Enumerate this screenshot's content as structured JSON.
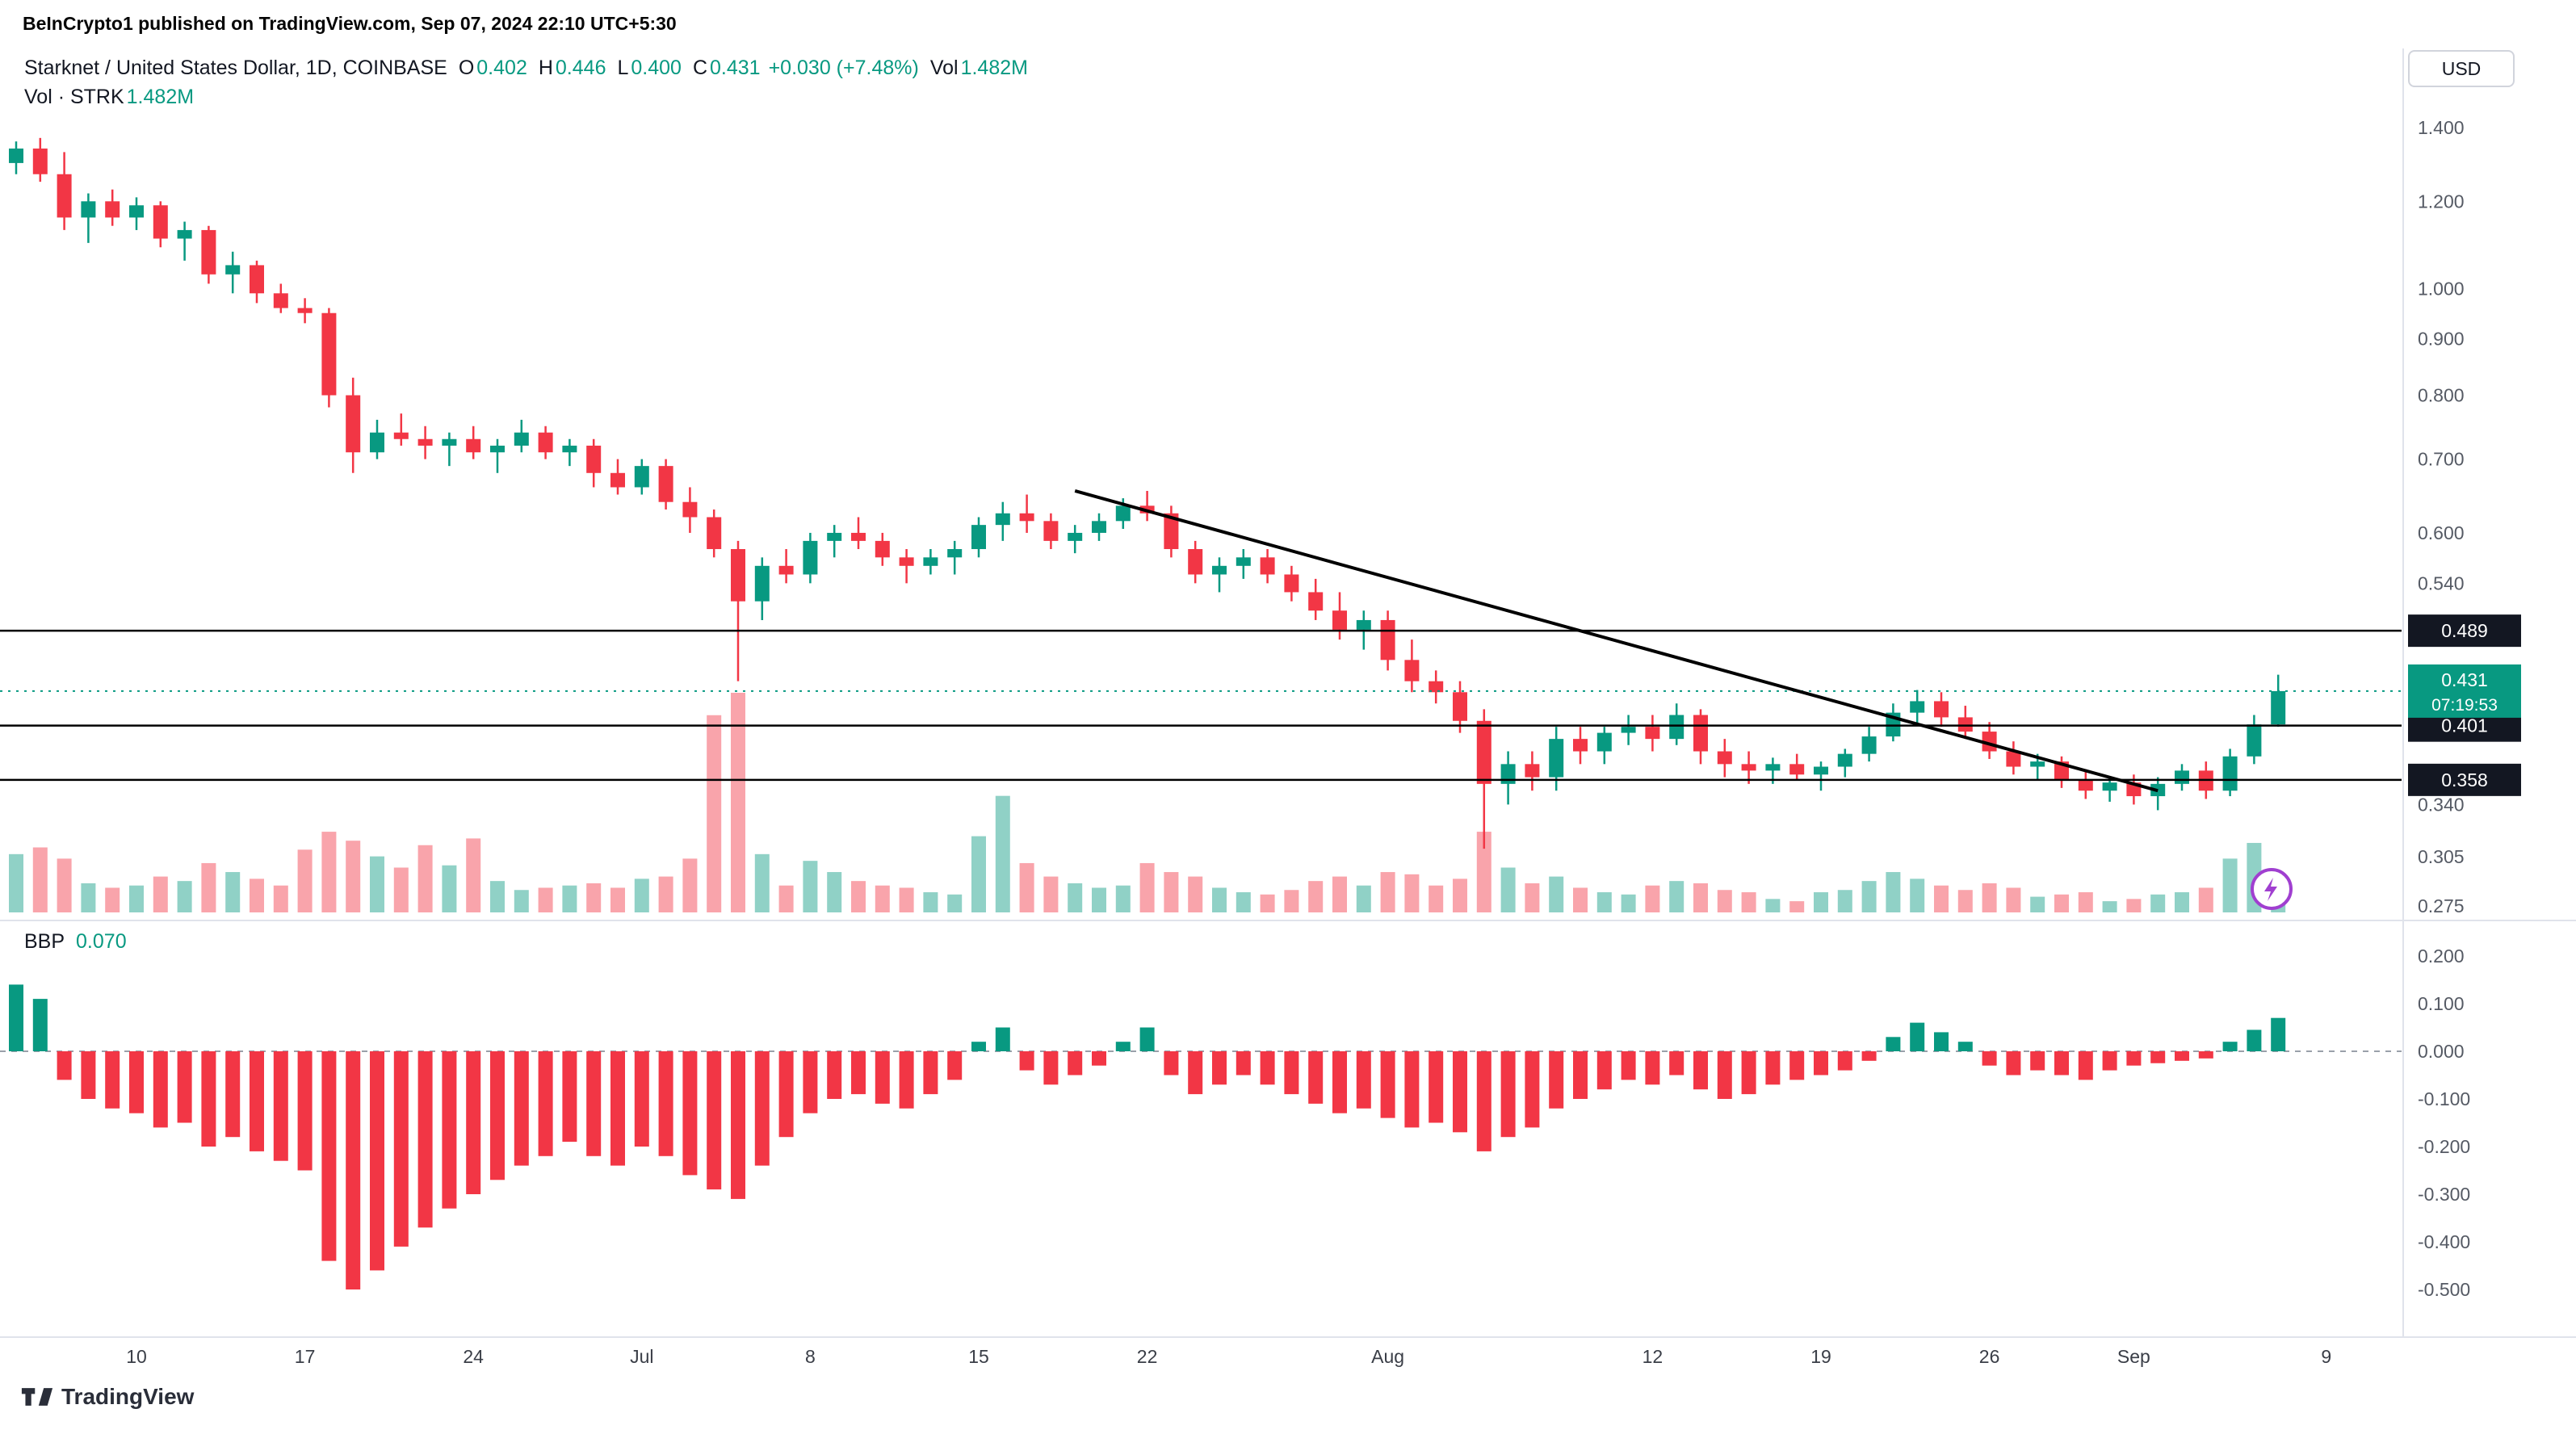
{
  "header": {
    "publication": "BeInCrypto1 published on TradingView.com, Sep 07, 2024 22:10 UTC+5:30"
  },
  "toolbar": {
    "currency_button": "USD"
  },
  "legend": {
    "symbol": "Starknet / United States Dollar, 1D, COINBASE",
    "o_label": "O",
    "o": "0.402",
    "h_label": "H",
    "h": "0.446",
    "l_label": "L",
    "l": "0.400",
    "c_label": "C",
    "c": "0.431",
    "change": "+0.030 (+7.48%)",
    "vol_label": "Vol",
    "vol": "1.482M",
    "vol_row_label": "Vol · STRK",
    "vol_row_value": "1.482M"
  },
  "indicator": {
    "label": "BBP",
    "value": "0.070"
  },
  "footer": {
    "logo_text": "TradingView"
  },
  "colors": {
    "up": "#089981",
    "down": "#f23645",
    "volume_up": "rgba(8,153,129,0.45)",
    "volume_down": "rgba(242,54,69,0.45)",
    "accent": "#089981",
    "badge_bg": "#131722",
    "axis_text": "#555a64",
    "time_text": "#3a3e47",
    "drawing": "#000000",
    "flash_icon": "#a03fd0"
  },
  "chart_data": [
    {
      "type": "candlestick",
      "symbol": "STRK/USD",
      "exchange": "COINBASE",
      "interval": "1D",
      "scale": "logarithmic",
      "ylim": [
        0.265,
        1.45
      ],
      "ohlc_current": {
        "open": 0.402,
        "high": 0.446,
        "low": 0.4,
        "close": 0.431,
        "change": "+0.030 (+7.48%)",
        "volume": "1.482M"
      },
      "price_ticks": [
        {
          "value": 1.4,
          "label": "1.400"
        },
        {
          "value": 1.2,
          "label": "1.200"
        },
        {
          "value": 1.0,
          "label": "1.000"
        },
        {
          "value": 0.9,
          "label": "0.900"
        },
        {
          "value": 0.8,
          "label": "0.800"
        },
        {
          "value": 0.7,
          "label": "0.700"
        },
        {
          "value": 0.6,
          "label": "0.600"
        },
        {
          "value": 0.54,
          "label": "0.540"
        },
        {
          "value": 0.34,
          "label": "0.340"
        },
        {
          "value": 0.305,
          "label": "0.305"
        },
        {
          "value": 0.275,
          "label": "0.275"
        }
      ],
      "x_ticks": [
        {
          "index": 5,
          "label": "10"
        },
        {
          "index": 12,
          "label": "17"
        },
        {
          "index": 19,
          "label": "24"
        },
        {
          "index": 26,
          "label": "Jul"
        },
        {
          "index": 33,
          "label": "8"
        },
        {
          "index": 40,
          "label": "15"
        },
        {
          "index": 47,
          "label": "22"
        },
        {
          "index": 57,
          "label": "Aug"
        },
        {
          "index": 68,
          "label": "12"
        },
        {
          "index": 75,
          "label": "19"
        },
        {
          "index": 82,
          "label": "26"
        },
        {
          "index": 88,
          "label": "Sep"
        },
        {
          "index": 96,
          "label": "9"
        }
      ],
      "levels": [
        {
          "price": 0.489,
          "style": "solid",
          "label": "0.489"
        },
        {
          "price": 0.401,
          "style": "solid",
          "label": "0.401"
        },
        {
          "price": 0.358,
          "style": "solid",
          "label": "0.358"
        },
        {
          "price": 0.431,
          "style": "dotted",
          "label": "0.431",
          "countdown": "07:19:53"
        }
      ],
      "trendline": {
        "from": {
          "index": 44,
          "price": 0.655
        },
        "to": {
          "index": 89,
          "price": 0.35
        }
      },
      "candle_columns": [
        "date",
        "open",
        "high",
        "low",
        "close",
        "volume_millions"
      ],
      "candles": [
        [
          "Jun 5",
          1.3,
          1.36,
          1.27,
          1.34,
          2.6
        ],
        [
          "Jun 6",
          1.34,
          1.37,
          1.25,
          1.27,
          2.9
        ],
        [
          "Jun 7",
          1.27,
          1.33,
          1.13,
          1.16,
          2.4
        ],
        [
          "Jun 8",
          1.16,
          1.22,
          1.1,
          1.2,
          1.3
        ],
        [
          "Jun 9",
          1.2,
          1.23,
          1.14,
          1.16,
          1.1
        ],
        [
          "Jun 10",
          1.16,
          1.21,
          1.13,
          1.19,
          1.2
        ],
        [
          "Jun 11",
          1.19,
          1.2,
          1.09,
          1.11,
          1.6
        ],
        [
          "Jun 12",
          1.11,
          1.15,
          1.06,
          1.13,
          1.4
        ],
        [
          "Jun 13",
          1.13,
          1.14,
          1.01,
          1.03,
          2.2
        ],
        [
          "Jun 14",
          1.03,
          1.08,
          0.99,
          1.05,
          1.8
        ],
        [
          "Jun 15",
          1.05,
          1.06,
          0.97,
          0.99,
          1.5
        ],
        [
          "Jun 16",
          0.99,
          1.01,
          0.95,
          0.96,
          1.2
        ],
        [
          "Jun 17",
          0.96,
          0.98,
          0.93,
          0.95,
          2.8
        ],
        [
          "Jun 18",
          0.95,
          0.96,
          0.78,
          0.8,
          3.6
        ],
        [
          "Jun 19",
          0.8,
          0.83,
          0.68,
          0.71,
          3.2
        ],
        [
          "Jun 20",
          0.71,
          0.76,
          0.7,
          0.74,
          2.5
        ],
        [
          "Jun 21",
          0.74,
          0.77,
          0.72,
          0.73,
          2.0
        ],
        [
          "Jun 22",
          0.73,
          0.75,
          0.7,
          0.72,
          3.0
        ],
        [
          "Jun 23",
          0.72,
          0.74,
          0.69,
          0.73,
          2.1
        ],
        [
          "Jun 24",
          0.73,
          0.75,
          0.7,
          0.71,
          3.3
        ],
        [
          "Jun 25",
          0.71,
          0.73,
          0.68,
          0.72,
          1.4
        ],
        [
          "Jun 26",
          0.72,
          0.76,
          0.71,
          0.74,
          1.0
        ],
        [
          "Jun 27",
          0.74,
          0.75,
          0.7,
          0.71,
          1.1
        ],
        [
          "Jun 28",
          0.71,
          0.73,
          0.69,
          0.72,
          1.2
        ],
        [
          "Jun 29",
          0.72,
          0.73,
          0.66,
          0.68,
          1.3
        ],
        [
          "Jun 30",
          0.68,
          0.7,
          0.65,
          0.66,
          1.1
        ],
        [
          "Jul 1",
          0.66,
          0.7,
          0.65,
          0.69,
          1.5
        ],
        [
          "Jul 2",
          0.69,
          0.7,
          0.63,
          0.64,
          1.6
        ],
        [
          "Jul 3",
          0.64,
          0.66,
          0.6,
          0.62,
          2.4
        ],
        [
          "Jul 4",
          0.62,
          0.63,
          0.57,
          0.58,
          8.8
        ],
        [
          "Jul 5",
          0.58,
          0.59,
          0.44,
          0.52,
          9.8
        ],
        [
          "Jul 6",
          0.52,
          0.57,
          0.5,
          0.56,
          2.6
        ],
        [
          "Jul 7",
          0.56,
          0.58,
          0.54,
          0.55,
          1.2
        ],
        [
          "Jul 8",
          0.55,
          0.6,
          0.54,
          0.59,
          2.3
        ],
        [
          "Jul 9",
          0.59,
          0.61,
          0.57,
          0.6,
          1.8
        ],
        [
          "Jul 10",
          0.6,
          0.62,
          0.58,
          0.59,
          1.4
        ],
        [
          "Jul 11",
          0.59,
          0.6,
          0.56,
          0.57,
          1.2
        ],
        [
          "Jul 12",
          0.57,
          0.58,
          0.54,
          0.56,
          1.1
        ],
        [
          "Jul 13",
          0.56,
          0.58,
          0.55,
          0.57,
          0.9
        ],
        [
          "Jul 14",
          0.57,
          0.59,
          0.55,
          0.58,
          0.8
        ],
        [
          "Jul 15",
          0.58,
          0.62,
          0.57,
          0.61,
          3.4
        ],
        [
          "Jul 16",
          0.61,
          0.64,
          0.59,
          0.625,
          5.2
        ],
        [
          "Jul 17",
          0.625,
          0.65,
          0.6,
          0.615,
          2.2
        ],
        [
          "Jul 18",
          0.615,
          0.625,
          0.58,
          0.59,
          1.6
        ],
        [
          "Jul 19",
          0.59,
          0.61,
          0.575,
          0.6,
          1.3
        ],
        [
          "Jul 20",
          0.6,
          0.625,
          0.59,
          0.615,
          1.1
        ],
        [
          "Jul 21",
          0.615,
          0.645,
          0.605,
          0.635,
          1.2
        ],
        [
          "Jul 22",
          0.635,
          0.655,
          0.615,
          0.625,
          2.2
        ],
        [
          "Jul 23",
          0.625,
          0.635,
          0.57,
          0.58,
          1.8
        ],
        [
          "Jul 24",
          0.58,
          0.59,
          0.54,
          0.55,
          1.6
        ],
        [
          "Jul 25",
          0.55,
          0.57,
          0.53,
          0.56,
          1.1
        ],
        [
          "Jul 26",
          0.56,
          0.58,
          0.545,
          0.57,
          0.9
        ],
        [
          "Jul 27",
          0.57,
          0.58,
          0.54,
          0.55,
          0.8
        ],
        [
          "Jul 28",
          0.55,
          0.56,
          0.52,
          0.53,
          1.0
        ],
        [
          "Jul 29",
          0.53,
          0.545,
          0.5,
          0.51,
          1.4
        ],
        [
          "Jul 30",
          0.51,
          0.53,
          0.48,
          0.49,
          1.6
        ],
        [
          "Jul 31",
          0.49,
          0.51,
          0.47,
          0.5,
          1.2
        ],
        [
          "Aug 1",
          0.5,
          0.51,
          0.45,
          0.46,
          1.8
        ],
        [
          "Aug 2",
          0.46,
          0.48,
          0.43,
          0.44,
          1.7
        ],
        [
          "Aug 3",
          0.44,
          0.45,
          0.42,
          0.43,
          1.2
        ],
        [
          "Aug 4",
          0.43,
          0.44,
          0.395,
          0.405,
          1.5
        ],
        [
          "Aug 5",
          0.405,
          0.415,
          0.31,
          0.355,
          3.6
        ],
        [
          "Aug 6",
          0.355,
          0.38,
          0.34,
          0.37,
          2.0
        ],
        [
          "Aug 7",
          0.37,
          0.38,
          0.35,
          0.36,
          1.3
        ],
        [
          "Aug 8",
          0.36,
          0.4,
          0.35,
          0.39,
          1.6
        ],
        [
          "Aug 9",
          0.39,
          0.4,
          0.37,
          0.38,
          1.1
        ],
        [
          "Aug 10",
          0.38,
          0.4,
          0.37,
          0.395,
          0.9
        ],
        [
          "Aug 11",
          0.395,
          0.41,
          0.385,
          0.4,
          0.8
        ],
        [
          "Aug 12",
          0.4,
          0.41,
          0.38,
          0.39,
          1.2
        ],
        [
          "Aug 13",
          0.39,
          0.42,
          0.385,
          0.41,
          1.4
        ],
        [
          "Aug 14",
          0.41,
          0.415,
          0.37,
          0.38,
          1.3
        ],
        [
          "Aug 15",
          0.38,
          0.39,
          0.36,
          0.37,
          1.0
        ],
        [
          "Aug 16",
          0.37,
          0.38,
          0.355,
          0.365,
          0.9
        ],
        [
          "Aug 17",
          0.365,
          0.375,
          0.355,
          0.37,
          0.6
        ],
        [
          "Aug 18",
          0.37,
          0.378,
          0.358,
          0.362,
          0.5
        ],
        [
          "Aug 19",
          0.362,
          0.372,
          0.35,
          0.368,
          0.9
        ],
        [
          "Aug 20",
          0.368,
          0.382,
          0.36,
          0.378,
          1.0
        ],
        [
          "Aug 21",
          0.378,
          0.4,
          0.372,
          0.392,
          1.4
        ],
        [
          "Aug 22",
          0.392,
          0.42,
          0.388,
          0.412,
          1.8
        ],
        [
          "Aug 23",
          0.412,
          0.432,
          0.402,
          0.422,
          1.5
        ],
        [
          "Aug 24",
          0.422,
          0.43,
          0.4,
          0.408,
          1.2
        ],
        [
          "Aug 25",
          0.408,
          0.418,
          0.39,
          0.396,
          1.0
        ],
        [
          "Aug 26",
          0.396,
          0.404,
          0.374,
          0.38,
          1.3
        ],
        [
          "Aug 27",
          0.38,
          0.388,
          0.362,
          0.368,
          1.1
        ],
        [
          "Aug 28",
          0.368,
          0.378,
          0.358,
          0.372,
          0.7
        ],
        [
          "Aug 29",
          0.372,
          0.376,
          0.352,
          0.358,
          0.8
        ],
        [
          "Aug 30",
          0.358,
          0.366,
          0.344,
          0.35,
          0.9
        ],
        [
          "Aug 31",
          0.35,
          0.36,
          0.342,
          0.356,
          0.5
        ],
        [
          "Sep 1",
          0.356,
          0.362,
          0.34,
          0.346,
          0.6
        ],
        [
          "Sep 2",
          0.346,
          0.36,
          0.336,
          0.355,
          0.8
        ],
        [
          "Sep 3",
          0.355,
          0.37,
          0.35,
          0.365,
          0.9
        ],
        [
          "Sep 4",
          0.365,
          0.372,
          0.344,
          0.35,
          1.1
        ],
        [
          "Sep 5",
          0.35,
          0.382,
          0.346,
          0.376,
          2.4
        ],
        [
          "Sep 6",
          0.376,
          0.41,
          0.37,
          0.402,
          3.1
        ],
        [
          "Sep 7",
          0.402,
          0.446,
          0.4,
          0.431,
          1.482
        ]
      ]
    },
    {
      "type": "bar",
      "title": "BBP",
      "current_value": 0.07,
      "ylim": [
        -0.55,
        0.25
      ],
      "ticks": [
        {
          "value": 0.2,
          "label": "0.200"
        },
        {
          "value": 0.1,
          "label": "0.100"
        },
        {
          "value": 0.0,
          "label": "0.000"
        },
        {
          "value": -0.1,
          "label": "-0.100"
        },
        {
          "value": -0.2,
          "label": "-0.200"
        },
        {
          "value": -0.3,
          "label": "-0.300"
        },
        {
          "value": -0.4,
          "label": "-0.400"
        },
        {
          "value": -0.5,
          "label": "-0.500"
        }
      ],
      "values": [
        0.14,
        0.11,
        -0.06,
        -0.1,
        -0.12,
        -0.13,
        -0.16,
        -0.15,
        -0.2,
        -0.18,
        -0.21,
        -0.23,
        -0.25,
        -0.44,
        -0.5,
        -0.46,
        -0.41,
        -0.37,
        -0.33,
        -0.3,
        -0.27,
        -0.24,
        -0.22,
        -0.19,
        -0.22,
        -0.24,
        -0.2,
        -0.22,
        -0.26,
        -0.29,
        -0.31,
        -0.24,
        -0.18,
        -0.13,
        -0.1,
        -0.09,
        -0.11,
        -0.12,
        -0.09,
        -0.06,
        0.02,
        0.05,
        -0.04,
        -0.07,
        -0.05,
        -0.03,
        0.02,
        0.05,
        -0.05,
        -0.09,
        -0.07,
        -0.05,
        -0.07,
        -0.09,
        -0.11,
        -0.13,
        -0.12,
        -0.14,
        -0.16,
        -0.15,
        -0.17,
        -0.21,
        -0.18,
        -0.16,
        -0.12,
        -0.1,
        -0.08,
        -0.06,
        -0.07,
        -0.05,
        -0.08,
        -0.1,
        -0.09,
        -0.07,
        -0.06,
        -0.05,
        -0.04,
        -0.02,
        0.03,
        0.06,
        0.04,
        0.02,
        -0.03,
        -0.05,
        -0.04,
        -0.05,
        -0.06,
        -0.04,
        -0.03,
        -0.025,
        -0.02,
        -0.015,
        0.02,
        0.045,
        0.07
      ]
    }
  ]
}
